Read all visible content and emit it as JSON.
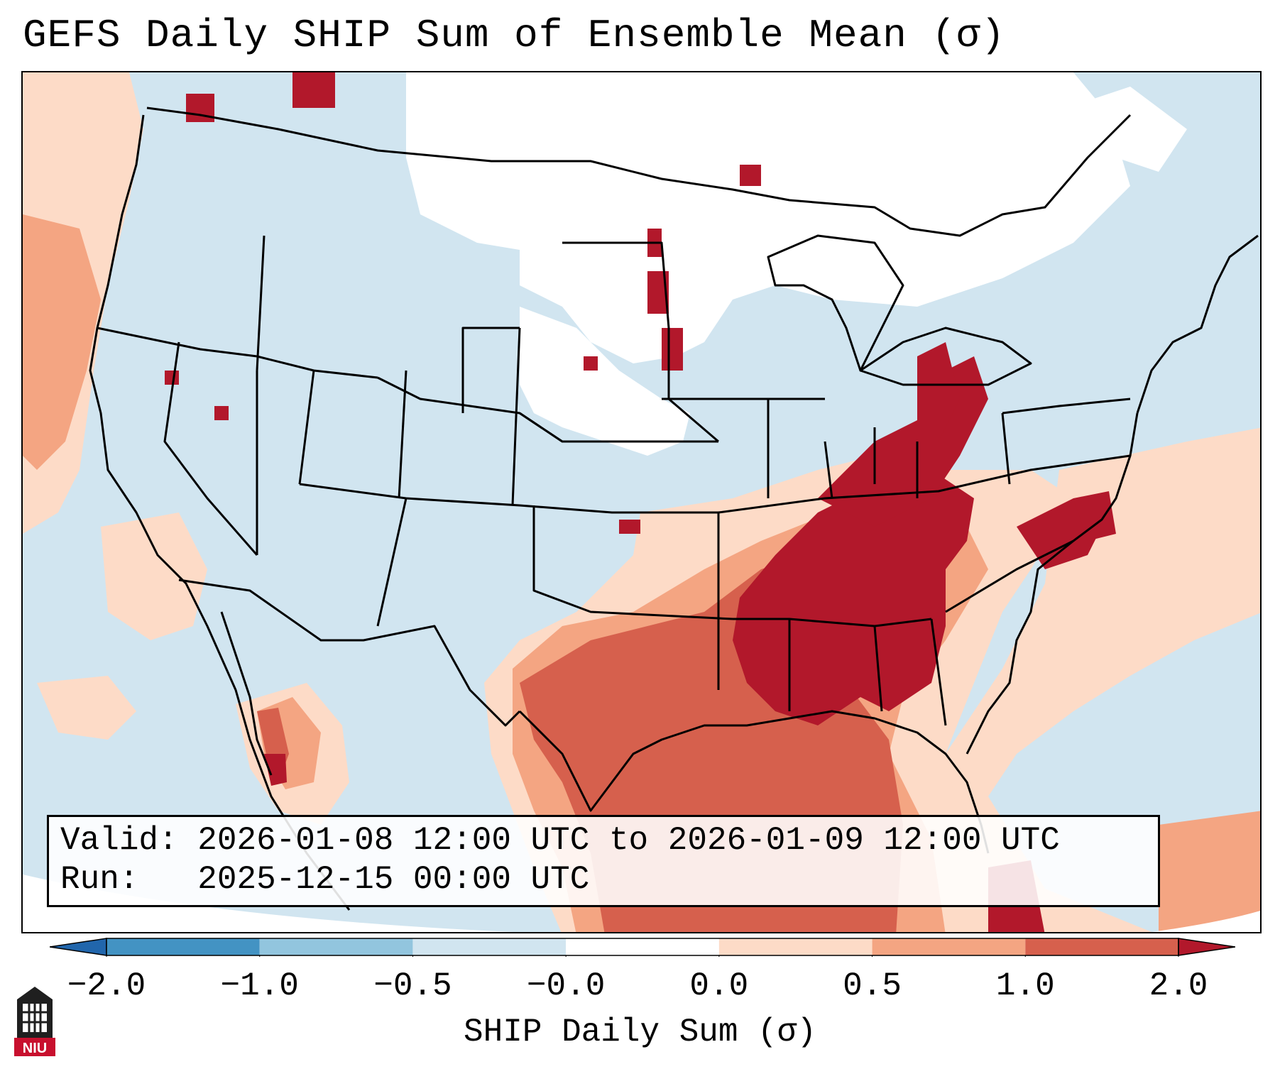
{
  "title": "GEFS Daily SHIP Sum of Ensemble Mean (σ)",
  "info": {
    "valid_label": "Valid:",
    "valid_value": "2026-01-08 12:00 UTC to 2026-01-09 12:00 UTC",
    "run_label": "Run:",
    "run_value": "2025-12-15 00:00 UTC"
  },
  "colorbar": {
    "label": "SHIP Daily Sum (σ)",
    "ticks": [
      "−2.0",
      "−1.0",
      "−0.5",
      "−0.0",
      "0.0",
      "0.5",
      "1.0",
      "2.0"
    ],
    "bins": [
      {
        "range": "< -2.0",
        "color": "#2166ac"
      },
      {
        "range": "-2.0 to -1.0",
        "color": "#4393c3"
      },
      {
        "range": "-1.0 to -0.5",
        "color": "#92c5de"
      },
      {
        "range": "-0.5 to -0.0",
        "color": "#d1e5f0"
      },
      {
        "range": "-0.0 to 0.0",
        "color": "#ffffff"
      },
      {
        "range": "0.0 to 0.5",
        "color": "#fddbc7"
      },
      {
        "range": "0.5 to 1.0",
        "color": "#f4a582"
      },
      {
        "range": "1.0 to 2.0",
        "color": "#d6604d"
      },
      {
        "range": "> 2.0",
        "color": "#b2182b"
      }
    ]
  },
  "logo": {
    "text": "NIU",
    "icon": "university-tower-icon"
  },
  "map": {
    "projection": "Lambert conformal, CONUS",
    "field_pattern": "Positive anomalies across the Deep South, Tennessee/Ohio Valleys, Gulf of Mexico and Mid-Atlantic; near-zero to slightly negative over western and northern US"
  }
}
